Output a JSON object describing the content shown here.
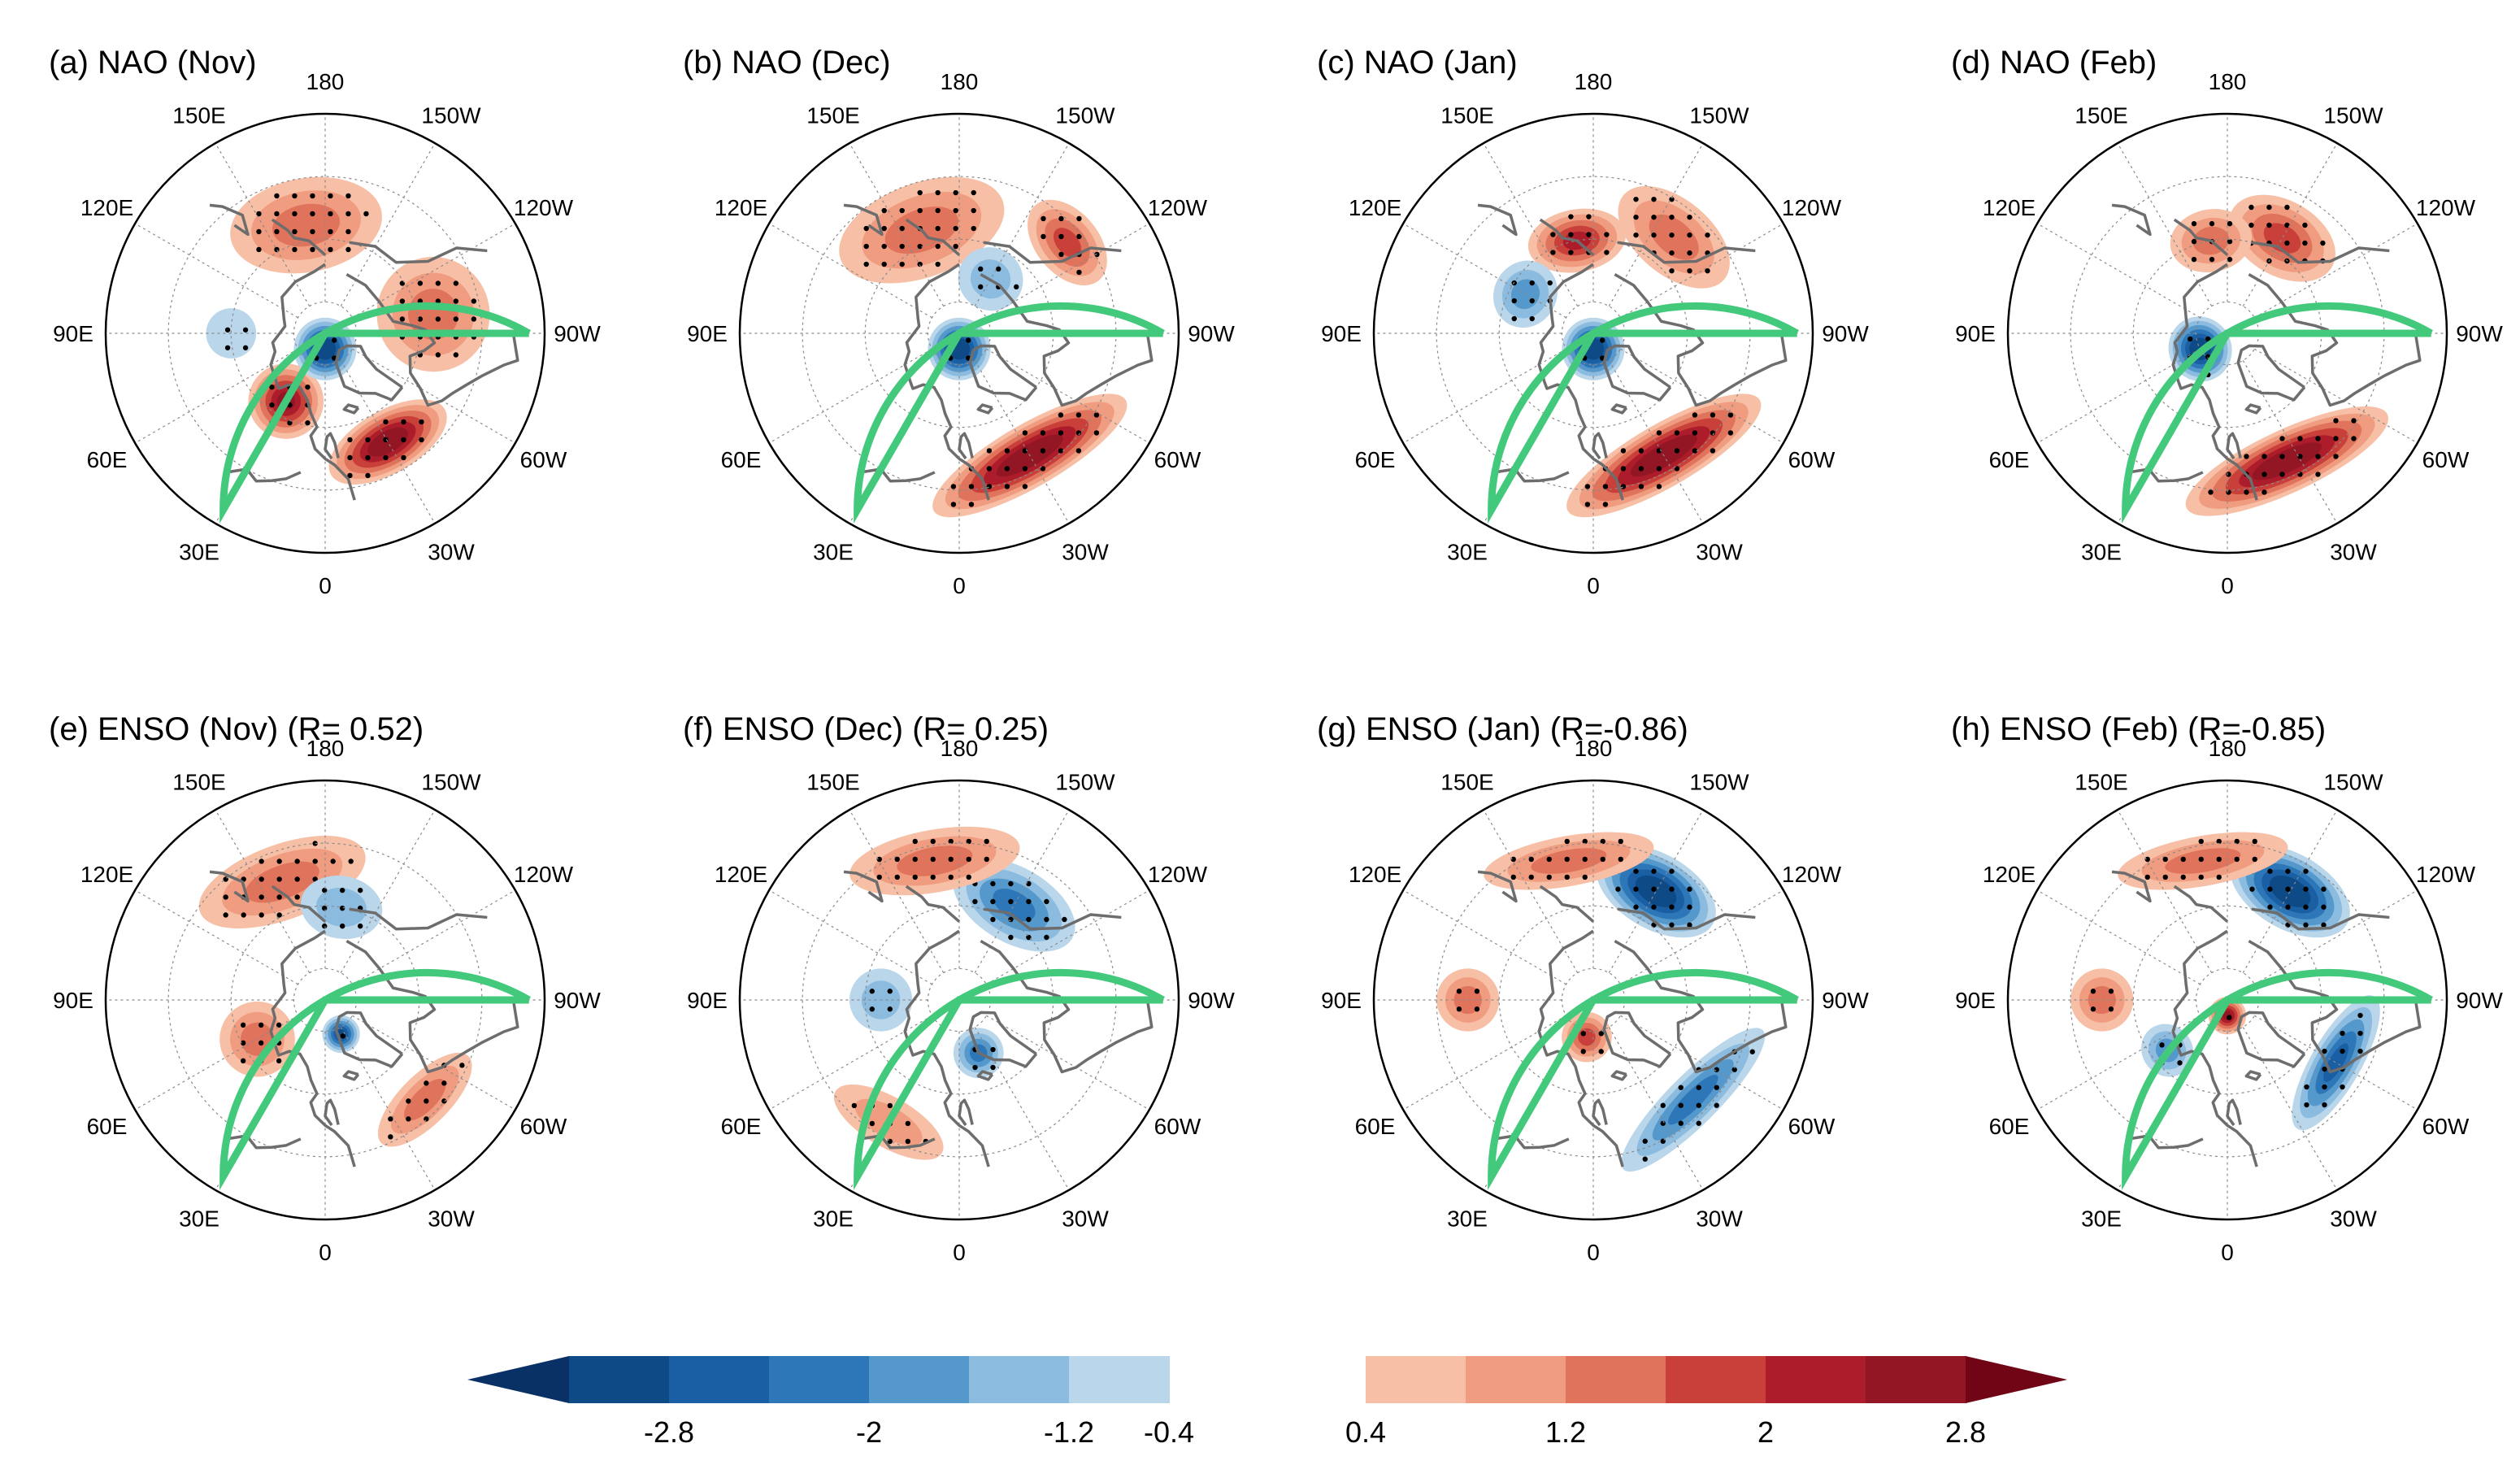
{
  "figure": {
    "longitude_labels": [
      "150E",
      "120E",
      "90E",
      "60E",
      "30E",
      "0",
      "30W",
      "60W",
      "90W",
      "120W",
      "150W",
      "180"
    ],
    "panels": [
      {
        "id": "a",
        "title": "(a) NAO (Nov)",
        "anomalies": [
          {
            "lon": -30,
            "lat": 50,
            "value": 2.8,
            "spread_lon": 30,
            "spread_lat": 10
          },
          {
            "lon": 30,
            "lat": 65,
            "value": 2.4,
            "spread_lon": 20,
            "spread_lat": 12
          },
          {
            "lon": -100,
            "lat": 55,
            "value": 1.2,
            "spread_lon": 30,
            "spread_lat": 18
          },
          {
            "lon": 170,
            "lat": 55,
            "value": 1.2,
            "spread_lon": 40,
            "spread_lat": 15
          },
          {
            "lon": 0,
            "lat": 85,
            "value": -2.8,
            "spread_lon": 60,
            "spread_lat": 10
          },
          {
            "lon": 90,
            "lat": 60,
            "value": -0.4,
            "spread_lon": 15,
            "spread_lat": 8
          }
        ]
      },
      {
        "id": "b",
        "title": "(b) NAO (Dec)",
        "anomalies": [
          {
            "lon": -30,
            "lat": 45,
            "value": 2.8,
            "spread_lon": 45,
            "spread_lat": 10
          },
          {
            "lon": 160,
            "lat": 55,
            "value": 1.2,
            "spread_lon": 45,
            "spread_lat": 15
          },
          {
            "lon": -130,
            "lat": 45,
            "value": 1.6,
            "spread_lon": 20,
            "spread_lat": 10
          },
          {
            "lon": 0,
            "lat": 85,
            "value": -2.8,
            "spread_lon": 60,
            "spread_lat": 10
          },
          {
            "lon": -150,
            "lat": 70,
            "value": -0.8,
            "spread_lon": 30,
            "spread_lat": 10
          }
        ]
      },
      {
        "id": "c",
        "title": "(c) NAO (Jan)",
        "anomalies": [
          {
            "lon": -30,
            "lat": 45,
            "value": 2.8,
            "spread_lon": 45,
            "spread_lat": 10
          },
          {
            "lon": 170,
            "lat": 60,
            "value": 2.0,
            "spread_lon": 30,
            "spread_lat": 10
          },
          {
            "lon": -140,
            "lat": 50,
            "value": 1.2,
            "spread_lon": 30,
            "spread_lat": 12
          },
          {
            "lon": 0,
            "lat": 85,
            "value": -2.8,
            "spread_lon": 60,
            "spread_lat": 10
          },
          {
            "lon": 120,
            "lat": 65,
            "value": -1.2,
            "spread_lon": 25,
            "spread_lat": 10
          }
        ]
      },
      {
        "id": "d",
        "title": "(d) NAO (Feb)",
        "anomalies": [
          {
            "lon": -25,
            "lat": 45,
            "value": 2.8,
            "spread_lon": 45,
            "spread_lat": 10
          },
          {
            "lon": -150,
            "lat": 55,
            "value": 1.6,
            "spread_lon": 30,
            "spread_lat": 12
          },
          {
            "lon": 170,
            "lat": 60,
            "value": 1.2,
            "spread_lon": 25,
            "spread_lat": 10
          },
          {
            "lon": 60,
            "lat": 80,
            "value": -2.8,
            "spread_lon": 60,
            "spread_lat": 10
          }
        ]
      },
      {
        "id": "e",
        "title": "(e) ENSO (Nov) (R= 0.52)",
        "anomalies": [
          {
            "lon": -25,
            "lat": 78,
            "value": -2.4,
            "spread_lon": 20,
            "spread_lat": 6
          },
          {
            "lon": 160,
            "lat": 50,
            "value": 1.2,
            "spread_lon": 40,
            "spread_lat": 12
          },
          {
            "lon": -45,
            "lat": 45,
            "value": 1.2,
            "spread_lon": 25,
            "spread_lat": 8
          },
          {
            "lon": 60,
            "lat": 65,
            "value": 1.2,
            "spread_lon": 15,
            "spread_lat": 12
          },
          {
            "lon": -170,
            "lat": 60,
            "value": -0.8,
            "spread_lon": 25,
            "spread_lat": 10
          }
        ]
      },
      {
        "id": "f",
        "title": "(f) ENSO (Dec) (R= 0.25)",
        "anomalies": [
          {
            "lon": -150,
            "lat": 55,
            "value": -1.6,
            "spread_lon": 35,
            "spread_lat": 12
          },
          {
            "lon": -20,
            "lat": 72,
            "value": -1.6,
            "spread_lon": 25,
            "spread_lat": 8
          },
          {
            "lon": 170,
            "lat": 45,
            "value": 1.2,
            "spread_lon": 35,
            "spread_lat": 10
          },
          {
            "lon": 30,
            "lat": 45,
            "value": 0.8,
            "spread_lon": 25,
            "spread_lat": 8
          },
          {
            "lon": 90,
            "lat": 65,
            "value": -0.8,
            "spread_lon": 20,
            "spread_lat": 10
          }
        ]
      },
      {
        "id": "g",
        "title": "(g) ENSO (Jan) (R=-0.86)",
        "anomalies": [
          {
            "lon": -150,
            "lat": 50,
            "value": -2.8,
            "spread_lon": 30,
            "spread_lat": 12
          },
          {
            "lon": -45,
            "lat": 45,
            "value": -1.6,
            "spread_lon": 40,
            "spread_lat": 8
          },
          {
            "lon": 170,
            "lat": 45,
            "value": 1.2,
            "spread_lon": 35,
            "spread_lat": 8
          },
          {
            "lon": 10,
            "lat": 78,
            "value": 1.6,
            "spread_lon": 30,
            "spread_lat": 8
          },
          {
            "lon": 90,
            "lat": 50,
            "value": 1.2,
            "spread_lon": 12,
            "spread_lat": 10
          }
        ]
      },
      {
        "id": "h",
        "title": "(h) ENSO (Feb) (R=-0.85)",
        "anomalies": [
          {
            "lon": -150,
            "lat": 50,
            "value": -2.8,
            "spread_lon": 30,
            "spread_lat": 12
          },
          {
            "lon": -60,
            "lat": 50,
            "value": -2.0,
            "spread_lon": 35,
            "spread_lat": 8
          },
          {
            "lon": 0,
            "lat": 85,
            "value": 2.4,
            "spread_lon": 60,
            "spread_lat": 6
          },
          {
            "lon": 50,
            "lat": 65,
            "value": -1.2,
            "spread_lon": 20,
            "spread_lat": 8
          },
          {
            "lon": 170,
            "lat": 45,
            "value": 1.2,
            "spread_lon": 35,
            "spread_lat": 8
          },
          {
            "lon": 90,
            "lat": 50,
            "value": 1.2,
            "spread_lon": 12,
            "spread_lat": 10
          }
        ]
      }
    ],
    "colorbar": {
      "negative": {
        "labels": [
          "-2.8",
          "-2",
          "-1.2",
          "-0.4"
        ],
        "colors": [
          "#0e4a86",
          "#1a5ea4",
          "#2d76b8",
          "#5598cb",
          "#8bbbde",
          "#bad6ea"
        ]
      },
      "positive": {
        "labels": [
          "0.4",
          "1.2",
          "2",
          "2.8"
        ],
        "colors": [
          "#f7bfa5",
          "#f09c80",
          "#e0735b",
          "#c9403a",
          "#ac1c2a",
          "#931624"
        ]
      },
      "arrow_colors": {
        "low": "#0a3165",
        "high": "#6f0515"
      }
    },
    "colors": {
      "box": "#43c97b",
      "coast": "#6d6d6d",
      "grid": "#8a8a8a",
      "stipple": "#000000"
    }
  }
}
